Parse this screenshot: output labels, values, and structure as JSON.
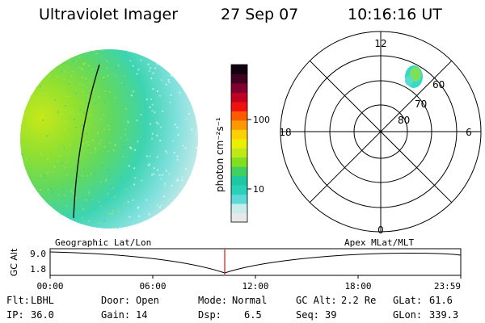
{
  "header": {
    "instrument": "Ultraviolet Imager",
    "date": "27 Sep 07",
    "time": "10:16:16 UT"
  },
  "colorbar": {
    "label": "photon cm⁻²s⁻¹",
    "ticks": [
      "100",
      "10"
    ],
    "colors": [
      "#e8e8e8",
      "#c8ecec",
      "#5fd8d8",
      "#2ad0b8",
      "#1ec8a0",
      "#40d060",
      "#80e020",
      "#c0e818",
      "#e8f000",
      "#ffd000",
      "#ff9800",
      "#ff5a00",
      "#f01010",
      "#c00020",
      "#800030",
      "#400020",
      "#100010"
    ]
  },
  "polar": {
    "clock_labels": [
      "12",
      "18",
      "6",
      "0"
    ],
    "lat_labels": [
      "60",
      "70",
      "80"
    ]
  },
  "timeline": {
    "left_label": "Geographic Lat/Lon",
    "right_label": "Apex MLat/MLT",
    "axis_title": "GC Alt",
    "ymax": "9.0",
    "ymin": "1.8",
    "ticks": [
      "00:00",
      "06:00",
      "12:00",
      "18:00",
      "23:59"
    ]
  },
  "status": {
    "flt_label": "Flt:",
    "flt_value": "LBHL",
    "ip_label": "IP:",
    "ip_value": "36.0",
    "door_label": "Door:",
    "door_value": "Open",
    "gain_label": "Gain:",
    "gain_value": "14",
    "mode_label": "Mode:",
    "mode_value": "Normal",
    "dsp_label": "Dsp:",
    "dsp_value": "6.5",
    "gcalt_label": "GC Alt:",
    "gcalt_value": "2.2 Re",
    "seq_label": "Seq:",
    "seq_value": "39",
    "glat_label": "GLat:",
    "glat_value": "61.6",
    "glon_label": "GLon:",
    "glon_value": "339.3"
  }
}
